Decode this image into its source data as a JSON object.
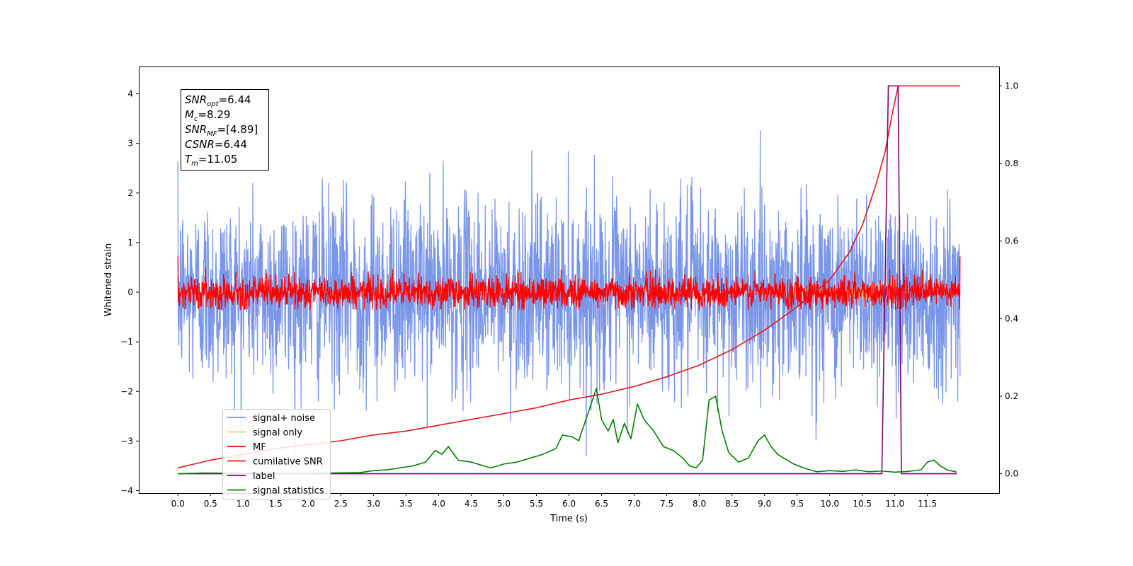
{
  "chart_data": {
    "type": "line",
    "title": "",
    "xlabel": "Time (s)",
    "ylabel": "Whitened strain",
    "xlim": [
      -0.6,
      12.6
    ],
    "ylim_left": [
      -4.05,
      4.55
    ],
    "ylim_right": [
      -0.05,
      1.05
    ],
    "x_ticks": [
      0.0,
      0.5,
      1.0,
      1.5,
      2.0,
      2.5,
      3.0,
      3.5,
      4.0,
      4.5,
      5.0,
      5.5,
      6.0,
      6.5,
      7.0,
      7.5,
      8.0,
      8.5,
      9.0,
      9.5,
      10.0,
      10.5,
      11.0,
      11.5
    ],
    "x_tick_labels": [
      "0.0",
      "0.5",
      "1.0",
      "1.5",
      "2.0",
      "2.5",
      "3.0",
      "3.5",
      "4.0",
      "4.5",
      "5.0",
      "5.5",
      "6.0",
      "6.5",
      "7.0",
      "7.5",
      "8.0",
      "8.5",
      "9.0",
      "9.5",
      "10.0",
      "10.5",
      "11.0",
      "11.5"
    ],
    "y_ticks_left": [
      -4,
      -3,
      -2,
      -1,
      0,
      1,
      2,
      3,
      4
    ],
    "y_tick_labels_left": [
      "−4",
      "−3",
      "−2",
      "−1",
      "0",
      "1",
      "2",
      "3",
      "4"
    ],
    "y_ticks_right": [
      0.0,
      0.2,
      0.4,
      0.6,
      0.8,
      1.0
    ],
    "y_tick_labels_right": [
      "0.0",
      "0.2",
      "0.4",
      "0.6",
      "0.8",
      "1.0"
    ],
    "grid": false,
    "legend_position": "lower-left",
    "annotation": {
      "position": "top-left",
      "lines": [
        {
          "main": "SNR",
          "sub": "opt",
          "rest": "=6.44"
        },
        {
          "main": "M",
          "sub": "c",
          "rest": "=8.29"
        },
        {
          "main": "SNR",
          "sub": "MF",
          "rest": "=[4.89]"
        },
        {
          "main": "CSNR",
          "sub": "",
          "rest": "=6.44"
        },
        {
          "main": "T",
          "sub": "m",
          "rest": "=11.05"
        }
      ]
    },
    "series": [
      {
        "name": "signal+ noise",
        "axis": "left",
        "color": "#7a96e8",
        "note_range": [
          -3.2,
          4.2
        ],
        "x_range": [
          0.0,
          12.0
        ]
      },
      {
        "name": "signal only",
        "axis": "left",
        "color": "#f5c77e",
        "x_range": [
          0.0,
          12.0
        ]
      },
      {
        "name": "MF",
        "axis": "left",
        "color": "#ff0000",
        "x_range": [
          0.0,
          12.0
        ]
      },
      {
        "name": "cumilative SNR",
        "axis": "right",
        "color": "#e8161c",
        "x": [
          0.0,
          0.5,
          1.0,
          1.5,
          2.0,
          2.5,
          3.0,
          3.5,
          4.0,
          4.5,
          5.0,
          5.5,
          6.0,
          6.5,
          7.0,
          7.5,
          8.0,
          8.5,
          9.0,
          9.5,
          10.0,
          10.3,
          10.5,
          10.7,
          10.85,
          10.95,
          11.05,
          11.1,
          11.5,
          12.0
        ],
        "y": [
          0.015,
          0.035,
          0.05,
          0.065,
          0.075,
          0.085,
          0.1,
          0.11,
          0.125,
          0.14,
          0.155,
          0.17,
          0.19,
          0.205,
          0.225,
          0.25,
          0.28,
          0.32,
          0.37,
          0.43,
          0.5,
          0.57,
          0.64,
          0.74,
          0.83,
          0.92,
          1.0,
          1.0,
          1.0,
          1.0
        ]
      },
      {
        "name": "label",
        "axis": "right",
        "color": "#800080",
        "x": [
          0.0,
          10.8,
          10.9,
          11.05,
          11.1,
          11.5,
          11.95
        ],
        "y": [
          0.0,
          0.0,
          1.0,
          1.0,
          0.0,
          0.0,
          0.0
        ]
      },
      {
        "name": "signal statistics",
        "axis": "right",
        "color": "#008000",
        "x": [
          0.0,
          0.4,
          1.0,
          2.0,
          2.8,
          3.0,
          3.2,
          3.4,
          3.6,
          3.8,
          3.95,
          4.05,
          4.15,
          4.3,
          4.5,
          4.8,
          5.0,
          5.2,
          5.4,
          5.6,
          5.8,
          5.9,
          6.05,
          6.15,
          6.3,
          6.42,
          6.5,
          6.6,
          6.68,
          6.75,
          6.85,
          6.95,
          7.05,
          7.15,
          7.3,
          7.45,
          7.6,
          7.75,
          7.85,
          7.95,
          8.05,
          8.15,
          8.25,
          8.35,
          8.45,
          8.6,
          8.75,
          8.9,
          9.0,
          9.1,
          9.2,
          9.3,
          9.45,
          9.6,
          9.8,
          10.0,
          10.2,
          10.4,
          10.6,
          10.8,
          11.0,
          11.2,
          11.4,
          11.5,
          11.6,
          11.7,
          11.8,
          11.9,
          11.95
        ],
        "y": [
          0.0,
          0.002,
          0.001,
          0.001,
          0.003,
          0.008,
          0.01,
          0.015,
          0.02,
          0.03,
          0.06,
          0.05,
          0.07,
          0.035,
          0.03,
          0.015,
          0.025,
          0.03,
          0.04,
          0.05,
          0.065,
          0.1,
          0.095,
          0.085,
          0.16,
          0.22,
          0.14,
          0.11,
          0.14,
          0.08,
          0.13,
          0.09,
          0.18,
          0.14,
          0.11,
          0.07,
          0.06,
          0.04,
          0.02,
          0.015,
          0.035,
          0.19,
          0.2,
          0.11,
          0.055,
          0.03,
          0.04,
          0.085,
          0.1,
          0.07,
          0.05,
          0.04,
          0.025,
          0.015,
          0.005,
          0.008,
          0.006,
          0.01,
          0.005,
          0.007,
          0.004,
          0.006,
          0.01,
          0.03,
          0.035,
          0.02,
          0.01,
          0.006,
          0.004
        ]
      }
    ]
  }
}
